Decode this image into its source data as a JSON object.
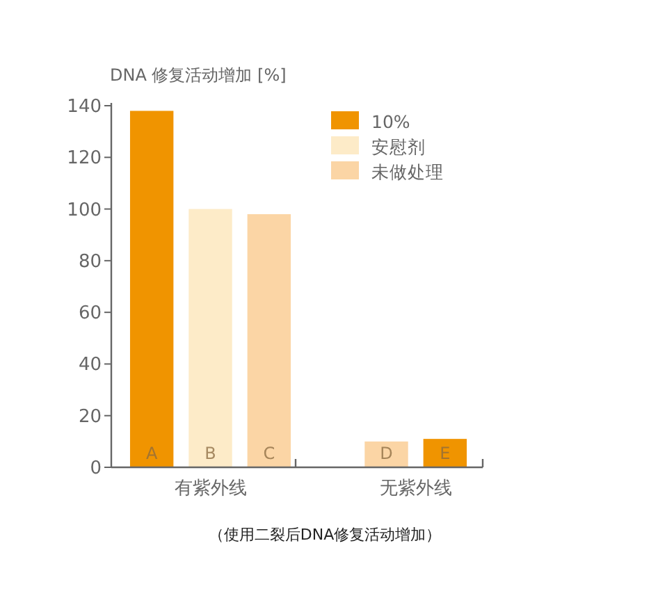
{
  "chart_data": {
    "type": "bar",
    "ylabel": "DNA 修复活动增加 [%]",
    "categories": [
      "A",
      "B",
      "C",
      null,
      "D",
      "E"
    ],
    "series": [
      {
        "name": "10%",
        "color": "#f09400",
        "values": [
          138,
          null,
          null,
          null,
          null,
          11
        ]
      },
      {
        "name": "安慰剂",
        "color": "#fdebc8",
        "values": [
          null,
          100,
          null,
          null,
          null,
          null
        ]
      },
      {
        "name": "未做处理",
        "color": "#fbd5a5",
        "values": [
          null,
          null,
          98,
          null,
          10,
          null
        ]
      }
    ],
    "ylim": [
      0,
      140
    ],
    "yticks": [
      0,
      20,
      40,
      60,
      80,
      100,
      120,
      140
    ],
    "grid": false,
    "legend": "top right",
    "annotations": [
      "有紫外线",
      "无紫外线",
      "（使用二裂后DNA修复活动增加）"
    ]
  }
}
